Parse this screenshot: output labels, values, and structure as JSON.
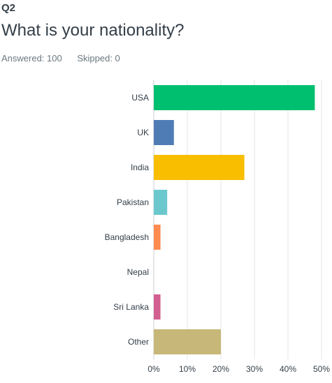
{
  "question": {
    "number": "Q2",
    "title": "What is your nationality?",
    "answered": "Answered: 100",
    "skipped": "Skipped: 0"
  },
  "chart_data": {
    "type": "bar",
    "orientation": "horizontal",
    "categories": [
      "USA",
      "UK",
      "India",
      "Pakistan",
      "Bangladesh",
      "Nepal",
      "Sri Lanka",
      "Other"
    ],
    "values": [
      48,
      6,
      27,
      4,
      2,
      0,
      2,
      20
    ],
    "value_unit": "percent",
    "colors": [
      "#00bf6f",
      "#507cb6",
      "#f9be00",
      "#6bc8cd",
      "#ff8b4f",
      "#7d5e90",
      "#d25f90",
      "#c7b879"
    ],
    "xlim": [
      0,
      50
    ],
    "x_ticks": [
      "0%",
      "10%",
      "20%",
      "30%",
      "40%",
      "50%"
    ],
    "grid": true,
    "title": "",
    "xlabel": "",
    "ylabel": ""
  }
}
